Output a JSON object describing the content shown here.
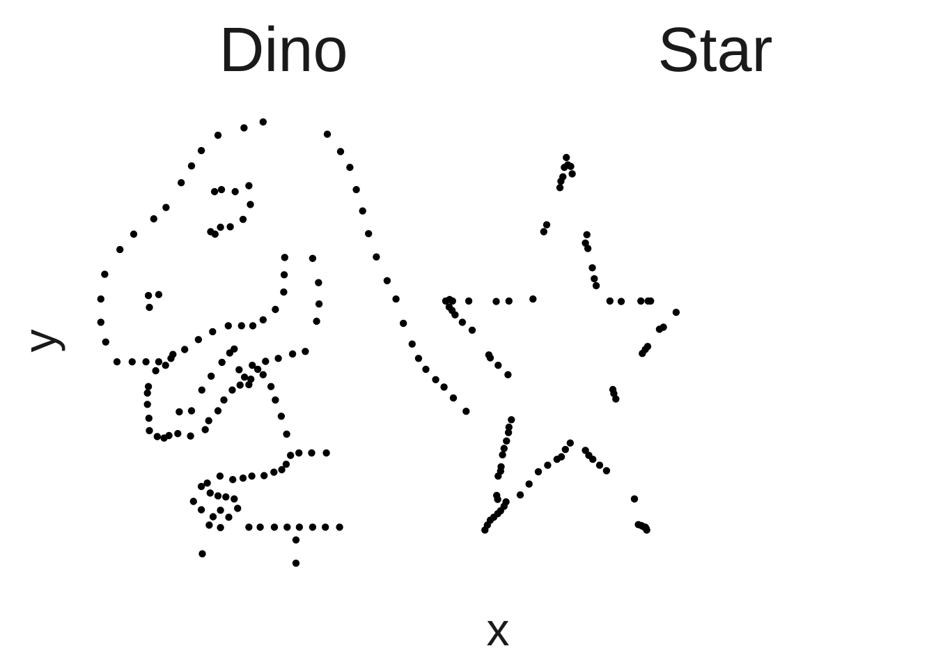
{
  "chart_data": {
    "type": "scatter",
    "xlabel": "x",
    "ylabel": "y",
    "grid": false,
    "legend": "none",
    "point_color": "#000000",
    "xlim": [
      20,
      100
    ],
    "ylim": [
      0,
      100
    ],
    "panels": [
      {
        "title": "Dino",
        "points": [
          [
            55.4,
            97.2
          ],
          [
            51.5,
            96.0
          ],
          [
            46.2,
            94.5
          ],
          [
            42.8,
            91.4
          ],
          [
            40.8,
            88.3
          ],
          [
            38.7,
            84.9
          ],
          [
            35.6,
            79.9
          ],
          [
            33.1,
            77.6
          ],
          [
            29.0,
            74.5
          ],
          [
            26.2,
            71.4
          ],
          [
            23.1,
            66.4
          ],
          [
            22.3,
            61.4
          ],
          [
            22.3,
            56.7
          ],
          [
            23.3,
            52.7
          ],
          [
            25.6,
            48.7
          ],
          [
            28.7,
            48.7
          ],
          [
            31.5,
            48.7
          ],
          [
            34.1,
            48.7
          ],
          [
            36.6,
            49.4
          ],
          [
            39.4,
            51.2
          ],
          [
            42.2,
            53.2
          ],
          [
            45.1,
            54.8
          ],
          [
            48.3,
            56.0
          ],
          [
            51.0,
            56.0
          ],
          [
            53.3,
            56.0
          ],
          [
            55.4,
            57.2
          ],
          [
            57.9,
            59.3
          ],
          [
            59.6,
            62.8
          ],
          [
            59.7,
            66.3
          ],
          [
            59.8,
            69.8
          ],
          [
            68.5,
            94.7
          ],
          [
            71.2,
            91.2
          ],
          [
            73.1,
            88.0
          ],
          [
            74.4,
            83.5
          ],
          [
            75.7,
            79.2
          ],
          [
            76.9,
            74.6
          ],
          [
            78.5,
            69.9
          ],
          [
            80.7,
            65.1
          ],
          [
            82.5,
            61.4
          ],
          [
            84.0,
            56.5
          ],
          [
            85.8,
            52.3
          ],
          [
            87.1,
            49.4
          ],
          [
            88.6,
            47.2
          ],
          [
            90.6,
            45.1
          ],
          [
            92.3,
            43.6
          ],
          [
            94.2,
            41.4
          ],
          [
            96.8,
            38.7
          ],
          [
            45.5,
            83.1
          ],
          [
            46.9,
            83.5
          ],
          [
            49.7,
            83.1
          ],
          [
            52.5,
            84.3
          ],
          [
            52.8,
            80.5
          ],
          [
            51.3,
            77.5
          ],
          [
            48.7,
            76.0
          ],
          [
            46.7,
            75.9
          ],
          [
            45.6,
            74.5
          ],
          [
            44.7,
            75.0
          ],
          [
            32.0,
            62.1
          ],
          [
            32.2,
            59.7
          ],
          [
            34.1,
            62.3
          ],
          [
            65.5,
            69.6
          ],
          [
            66.7,
            64.7
          ],
          [
            66.8,
            60.4
          ],
          [
            66.3,
            56.9
          ],
          [
            64.0,
            50.8
          ],
          [
            61.4,
            50.3
          ],
          [
            58.5,
            49.4
          ],
          [
            55.9,
            48.8
          ],
          [
            54.3,
            47.2
          ],
          [
            52.9,
            45.2
          ],
          [
            52.5,
            44.1
          ],
          [
            50.7,
            44.0
          ],
          [
            49.1,
            43.0
          ],
          [
            47.4,
            41.0
          ],
          [
            46.2,
            38.8
          ],
          [
            44.3,
            36.8
          ],
          [
            43.6,
            35.0
          ],
          [
            40.6,
            33.7
          ],
          [
            38.0,
            34.2
          ],
          [
            36.2,
            33.8
          ],
          [
            35.2,
            33.3
          ],
          [
            33.8,
            33.6
          ],
          [
            32.2,
            34.8
          ],
          [
            32.1,
            37.3
          ],
          [
            31.8,
            40.1
          ],
          [
            31.8,
            42.4
          ],
          [
            32.0,
            43.7
          ],
          [
            33.5,
            46.9
          ],
          [
            35.5,
            48.0
          ],
          [
            37.0,
            50.2
          ],
          [
            38.3,
            38.6
          ],
          [
            40.8,
            38.8
          ],
          [
            42.9,
            43.0
          ],
          [
            44.8,
            45.8
          ],
          [
            47.0,
            48.6
          ],
          [
            48.6,
            50.5
          ],
          [
            49.5,
            51.3
          ],
          [
            50.5,
            47.1
          ],
          [
            51.6,
            45.6
          ],
          [
            53.2,
            48.0
          ],
          [
            55.4,
            46.1
          ],
          [
            57.0,
            43.7
          ],
          [
            57.9,
            41.0
          ],
          [
            59.1,
            37.7
          ],
          [
            60.2,
            34.1
          ],
          [
            61.0,
            29.8
          ],
          [
            60.1,
            28.0
          ],
          [
            59.2,
            26.9
          ],
          [
            57.6,
            26.4
          ],
          [
            55.6,
            25.7
          ],
          [
            53.1,
            25.6
          ],
          [
            51.3,
            25.2
          ],
          [
            49.2,
            24.9
          ],
          [
            46.6,
            25.6
          ],
          [
            44.0,
            24.2
          ],
          [
            42.8,
            23.5
          ],
          [
            44.6,
            22.2
          ],
          [
            46.2,
            21.6
          ],
          [
            47.8,
            21.4
          ],
          [
            49.5,
            21.0
          ],
          [
            41.2,
            20.5
          ],
          [
            42.8,
            18.8
          ],
          [
            45.2,
            17.4
          ],
          [
            46.7,
            18.7
          ],
          [
            48.4,
            17.3
          ],
          [
            50.2,
            19.1
          ],
          [
            44.4,
            15.7
          ],
          [
            46.7,
            15.2
          ],
          [
            52.5,
            15.3
          ],
          [
            54.8,
            15.3
          ],
          [
            57.7,
            15.3
          ],
          [
            60.3,
            15.3
          ],
          [
            62.8,
            15.3
          ],
          [
            65.5,
            15.3
          ],
          [
            68.1,
            15.3
          ],
          [
            71.0,
            15.3
          ],
          [
            43.0,
            9.9
          ],
          [
            62.1,
            12.7
          ],
          [
            62.1,
            8.0
          ],
          [
            62.7,
            30.3
          ],
          [
            65.3,
            30.3
          ],
          [
            68.3,
            30.3
          ]
        ]
      },
      {
        "title": "Star",
        "points": [
          [
            59.0,
            90.0
          ],
          [
            59.3,
            88.5
          ],
          [
            59.9,
            88.2
          ],
          [
            58.6,
            88.0
          ],
          [
            60.2,
            86.7
          ],
          [
            58.3,
            86.1
          ],
          [
            57.9,
            85.2
          ],
          [
            57.7,
            83.9
          ],
          [
            55.0,
            76.4
          ],
          [
            54.4,
            75.0
          ],
          [
            63.2,
            74.4
          ],
          [
            62.9,
            72.7
          ],
          [
            63.4,
            71.6
          ],
          [
            64.3,
            67.7
          ],
          [
            64.7,
            65.5
          ],
          [
            65.1,
            64.1
          ],
          [
            67.9,
            61.0
          ],
          [
            70.2,
            60.9
          ],
          [
            74.2,
            61.0
          ],
          [
            75.7,
            61.0
          ],
          [
            76.2,
            61.0
          ],
          [
            81.4,
            58.7
          ],
          [
            78.8,
            55.7
          ],
          [
            78.0,
            55.3
          ],
          [
            75.6,
            51.8
          ],
          [
            75.1,
            51.2
          ],
          [
            74.5,
            50.4
          ],
          [
            68.5,
            43.1
          ],
          [
            68.7,
            42.3
          ],
          [
            69.1,
            41.2
          ],
          [
            52.2,
            61.4
          ],
          [
            47.3,
            61.0
          ],
          [
            44.7,
            60.9
          ],
          [
            39.1,
            61.0
          ],
          [
            35.8,
            61.0
          ],
          [
            35.2,
            61.3
          ],
          [
            34.4,
            61.0
          ],
          [
            35.1,
            59.8
          ],
          [
            35.7,
            59.1
          ],
          [
            36.3,
            58.2
          ],
          [
            37.8,
            56.7
          ],
          [
            39.8,
            55.1
          ],
          [
            43.2,
            50.1
          ],
          [
            43.5,
            49.5
          ],
          [
            45.1,
            48.0
          ],
          [
            47.1,
            46.1
          ],
          [
            47.8,
            37.0
          ],
          [
            47.3,
            35.5
          ],
          [
            47.2,
            34.4
          ],
          [
            46.8,
            32.7
          ],
          [
            46.3,
            31.2
          ],
          [
            46.0,
            29.9
          ],
          [
            45.7,
            27.5
          ],
          [
            45.6,
            26.6
          ],
          [
            45.1,
            25.6
          ],
          [
            44.8,
            21.7
          ],
          [
            45.0,
            20.9
          ],
          [
            46.7,
            20.4
          ],
          [
            46.3,
            19.5
          ],
          [
            45.6,
            18.6
          ],
          [
            45.0,
            18.0
          ],
          [
            44.2,
            17.3
          ],
          [
            43.5,
            16.7
          ],
          [
            42.9,
            15.7
          ],
          [
            42.4,
            14.7
          ],
          [
            49.6,
            21.8
          ],
          [
            51.4,
            24.0
          ],
          [
            53.3,
            26.5
          ],
          [
            55.2,
            27.8
          ],
          [
            57.1,
            29.0
          ],
          [
            58.0,
            29.5
          ],
          [
            58.8,
            31.0
          ],
          [
            59.8,
            32.3
          ],
          [
            62.9,
            30.8
          ],
          [
            63.6,
            29.8
          ],
          [
            64.4,
            29.0
          ],
          [
            65.8,
            27.8
          ],
          [
            67.2,
            26.7
          ],
          [
            72.9,
            21.0
          ],
          [
            73.7,
            15.8
          ],
          [
            74.3,
            15.6
          ],
          [
            74.7,
            15.4
          ],
          [
            75.1,
            15.3
          ],
          [
            75.3,
            15.0
          ],
          [
            75.4,
            14.7
          ]
        ]
      }
    ]
  }
}
